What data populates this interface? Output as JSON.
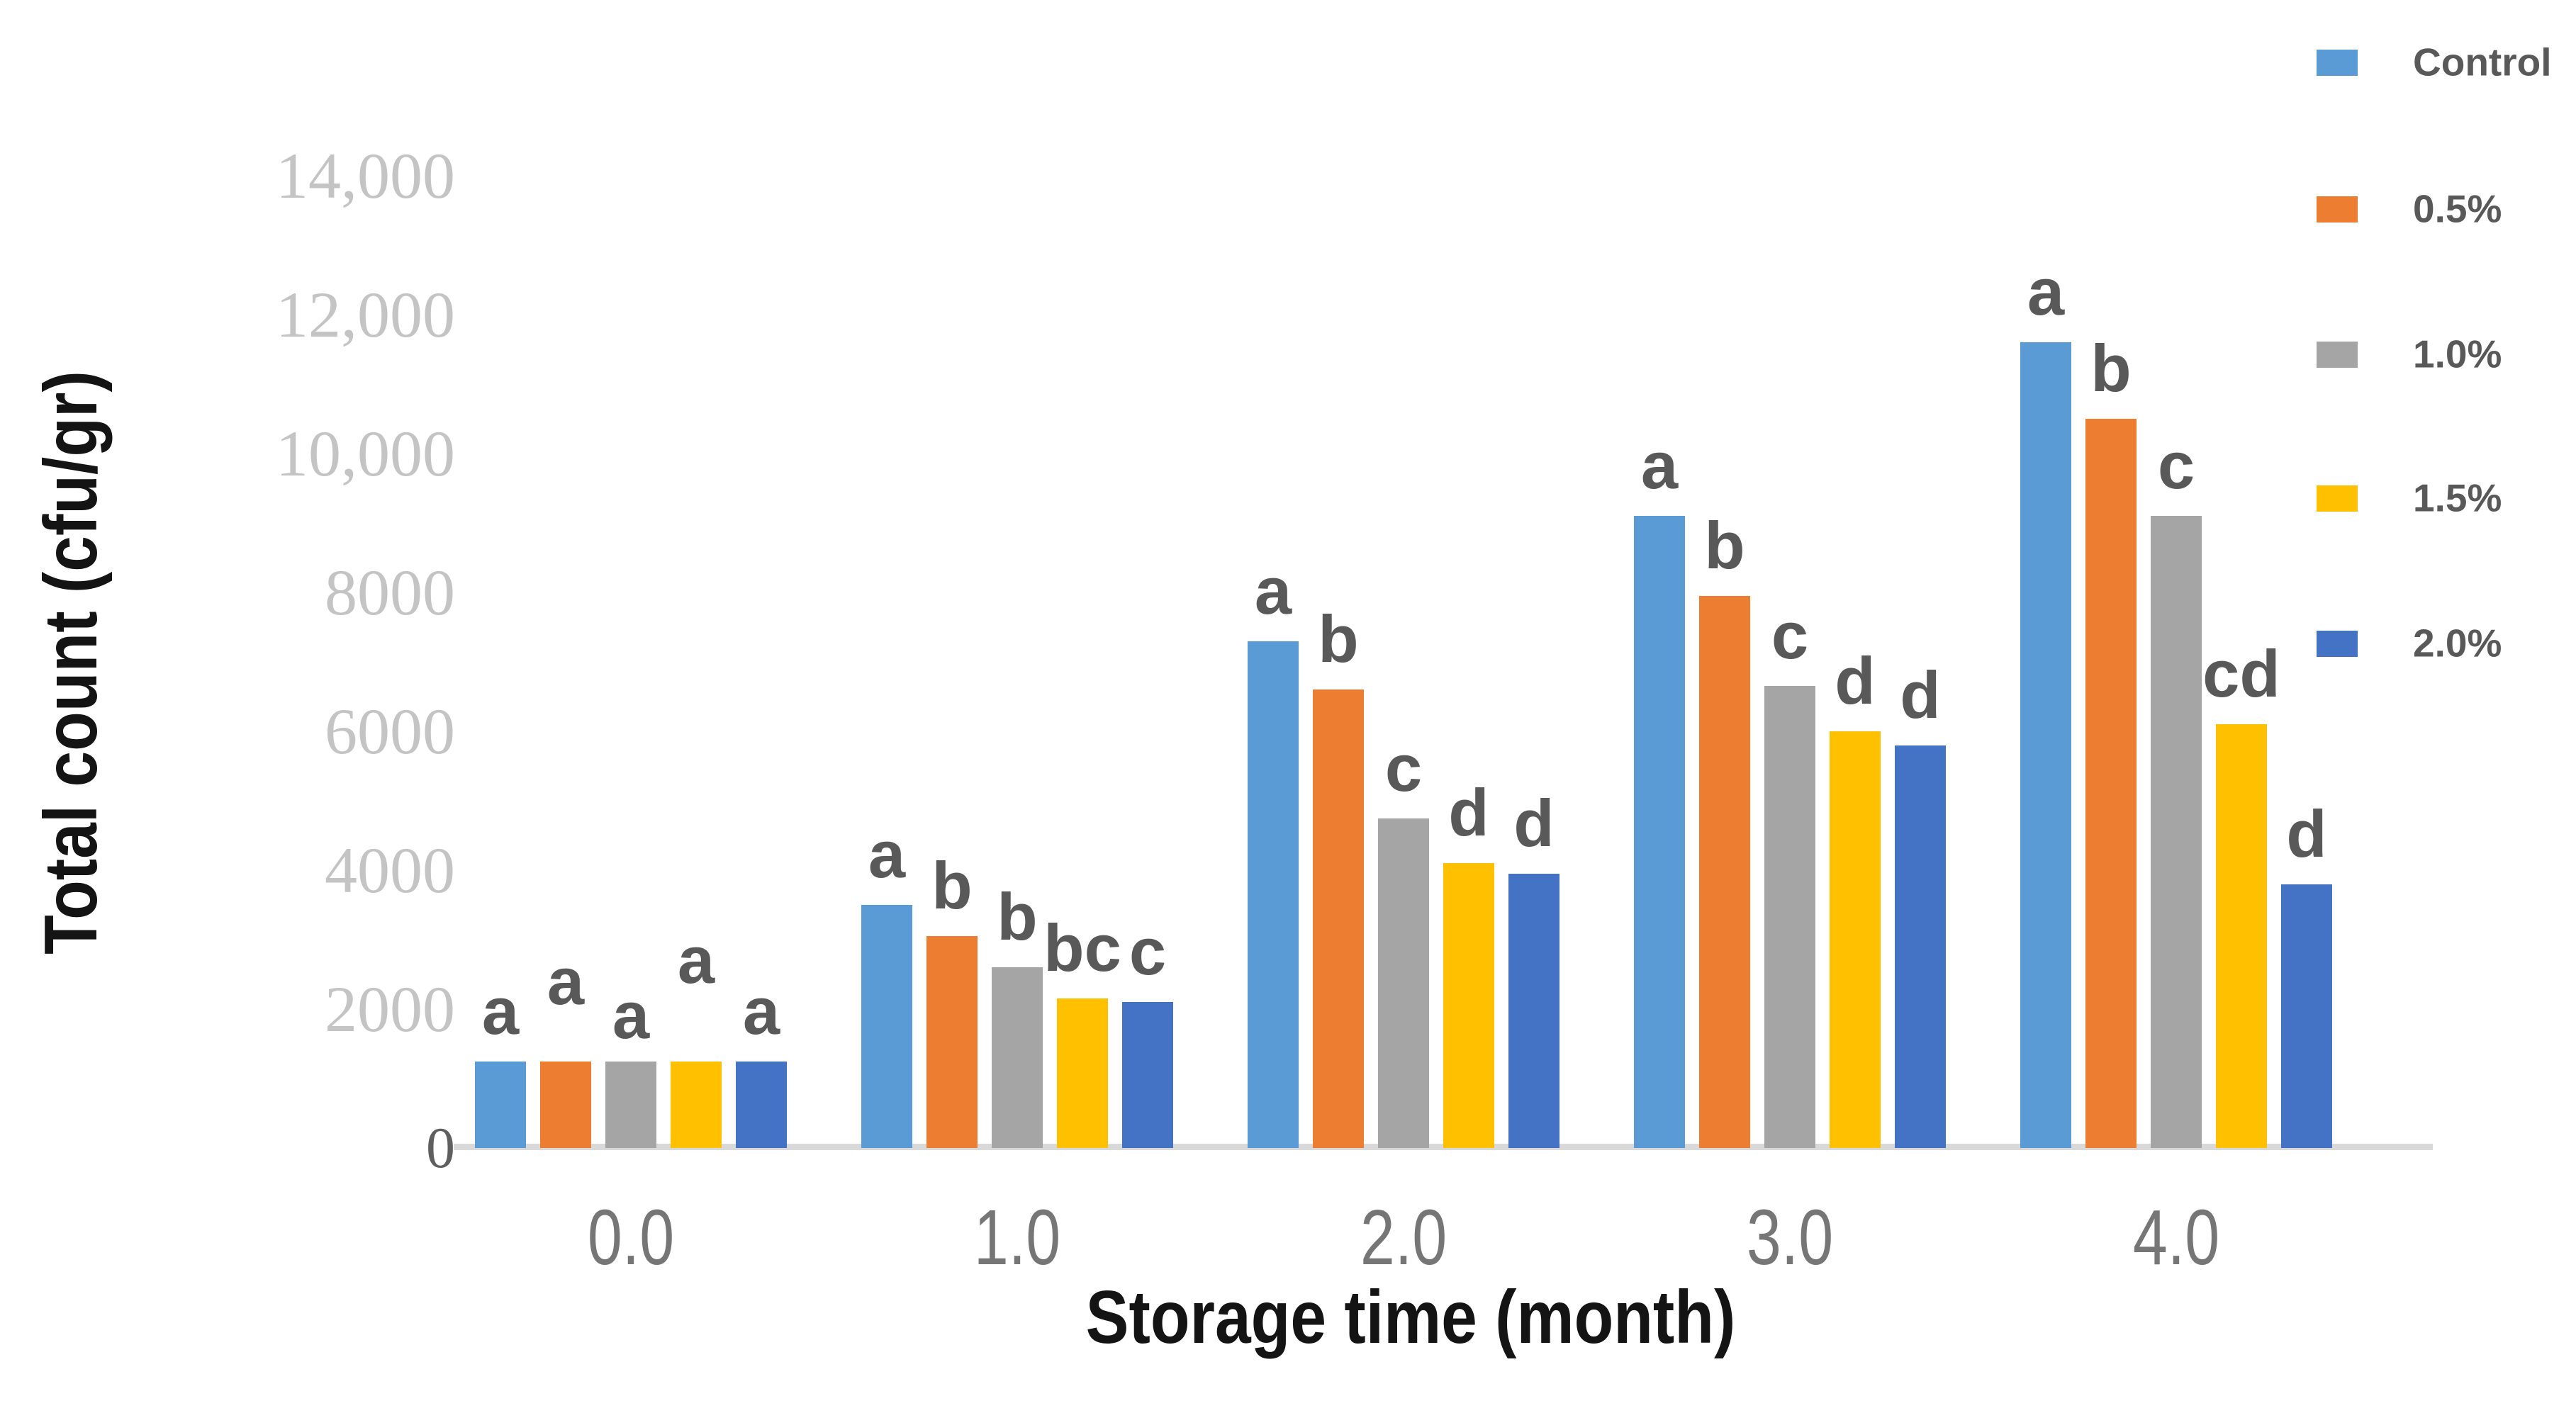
{
  "chart_data": {
    "type": "bar",
    "title": "",
    "xlabel": "Storage time (month)",
    "ylabel": "Total count (cfu/gr)",
    "categories": [
      "0.0",
      "1.0",
      "2.0",
      "3.0",
      "4.0"
    ],
    "series": [
      {
        "name": "Control",
        "color": "#5B9BD5",
        "values": [
          1250,
          3500,
          7300,
          9100,
          11600
        ],
        "letters": [
          "a",
          "a",
          "a",
          "a",
          "a"
        ]
      },
      {
        "name": "0.5%",
        "color": "#ED7D31",
        "values": [
          1250,
          3050,
          6600,
          7950,
          10500
        ],
        "letters": [
          "a",
          "b",
          "b",
          "b",
          "b"
        ]
      },
      {
        "name": "1.0%",
        "color": "#A5A5A5",
        "values": [
          1250,
          2600,
          4750,
          6650,
          9100
        ],
        "letters": [
          "a",
          "b",
          "c",
          "c",
          "c"
        ]
      },
      {
        "name": "1.5%",
        "color": "#FFC000",
        "values": [
          1250,
          2150,
          4100,
          6000,
          6100
        ],
        "letters": [
          "a",
          "bc",
          "d",
          "d",
          "cd"
        ]
      },
      {
        "name": "2.0%",
        "color": "#4472C4",
        "values": [
          1250,
          2100,
          3950,
          5800,
          3800
        ],
        "letters": [
          "a",
          "c",
          "d",
          "d",
          "d"
        ]
      }
    ],
    "y_ticks": [
      {
        "v": 0,
        "label": "0"
      },
      {
        "v": 2000,
        "label": "2000"
      },
      {
        "v": 4000,
        "label": "4000"
      },
      {
        "v": 6000,
        "label": "6000"
      },
      {
        "v": 8000,
        "label": "8000"
      },
      {
        "v": 10000,
        "label": "10,000"
      },
      {
        "v": 12000,
        "label": "12,000"
      },
      {
        "v": 14000,
        "label": "14,000"
      }
    ],
    "ylim": [
      0,
      14000
    ],
    "grid": false,
    "legend_position": "right",
    "colors": {
      "axis_line": "#d9d9d9",
      "tick_labels": "#c4c4c4",
      "zero_tick": "#5f5f5f",
      "x_tick_labels": "#767676",
      "significance_letters": "#595959",
      "axis_titles": "#141414"
    }
  }
}
